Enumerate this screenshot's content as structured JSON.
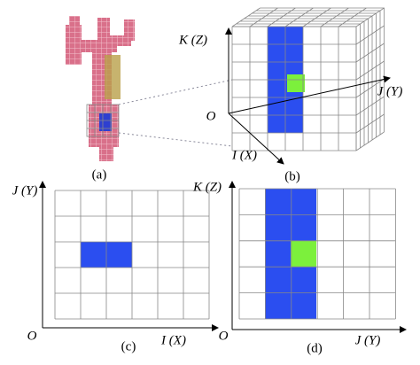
{
  "panels": [
    {
      "caption": "(a)"
    },
    {
      "caption": "(b)",
      "vertical_axis": "K (Z)",
      "horizontal_axis": "J (Y)",
      "depth_axis": "I (X)",
      "origin": "O"
    },
    {
      "caption": "(c)",
      "vertical_axis": "J (Y)",
      "horizontal_axis": "I (X)",
      "origin": "O"
    },
    {
      "caption": "(d)",
      "vertical_axis": "K (Z)",
      "horizontal_axis": "J (Y)",
      "origin": "O"
    }
  ]
}
